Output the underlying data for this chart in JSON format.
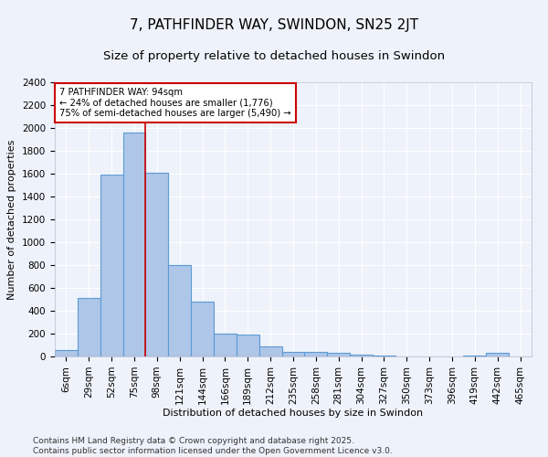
{
  "title": "7, PATHFINDER WAY, SWINDON, SN25 2JT",
  "subtitle": "Size of property relative to detached houses in Swindon",
  "xlabel": "Distribution of detached houses by size in Swindon",
  "ylabel": "Number of detached properties",
  "footer_line1": "Contains HM Land Registry data © Crown copyright and database right 2025.",
  "footer_line2": "Contains public sector information licensed under the Open Government Licence v3.0.",
  "categories": [
    "6sqm",
    "29sqm",
    "52sqm",
    "75sqm",
    "98sqm",
    "121sqm",
    "144sqm",
    "166sqm",
    "189sqm",
    "212sqm",
    "235sqm",
    "258sqm",
    "281sqm",
    "304sqm",
    "327sqm",
    "350sqm",
    "373sqm",
    "396sqm",
    "419sqm",
    "442sqm",
    "465sqm"
  ],
  "values": [
    60,
    510,
    1590,
    1960,
    1610,
    800,
    480,
    200,
    195,
    90,
    40,
    40,
    30,
    20,
    5,
    0,
    0,
    0,
    5,
    30,
    0
  ],
  "bar_color": "#aec6e8",
  "bar_edge_color": "#5b9bd5",
  "bar_linewidth": 0.8,
  "vline_color": "#cc0000",
  "annotation_text": "7 PATHFINDER WAY: 94sqm\n← 24% of detached houses are smaller (1,776)\n75% of semi-detached houses are larger (5,490) →",
  "annotation_box_color": "#ffffff",
  "annotation_box_edge": "#cc0000",
  "ylim": [
    0,
    2400
  ],
  "yticks": [
    0,
    200,
    400,
    600,
    800,
    1000,
    1200,
    1400,
    1600,
    1800,
    2000,
    2200,
    2400
  ],
  "background_color": "#eef2fa",
  "grid_color": "#ffffff",
  "title_fontsize": 11,
  "subtitle_fontsize": 9.5,
  "axis_label_fontsize": 8,
  "tick_fontsize": 7.5,
  "footer_fontsize": 6.5
}
